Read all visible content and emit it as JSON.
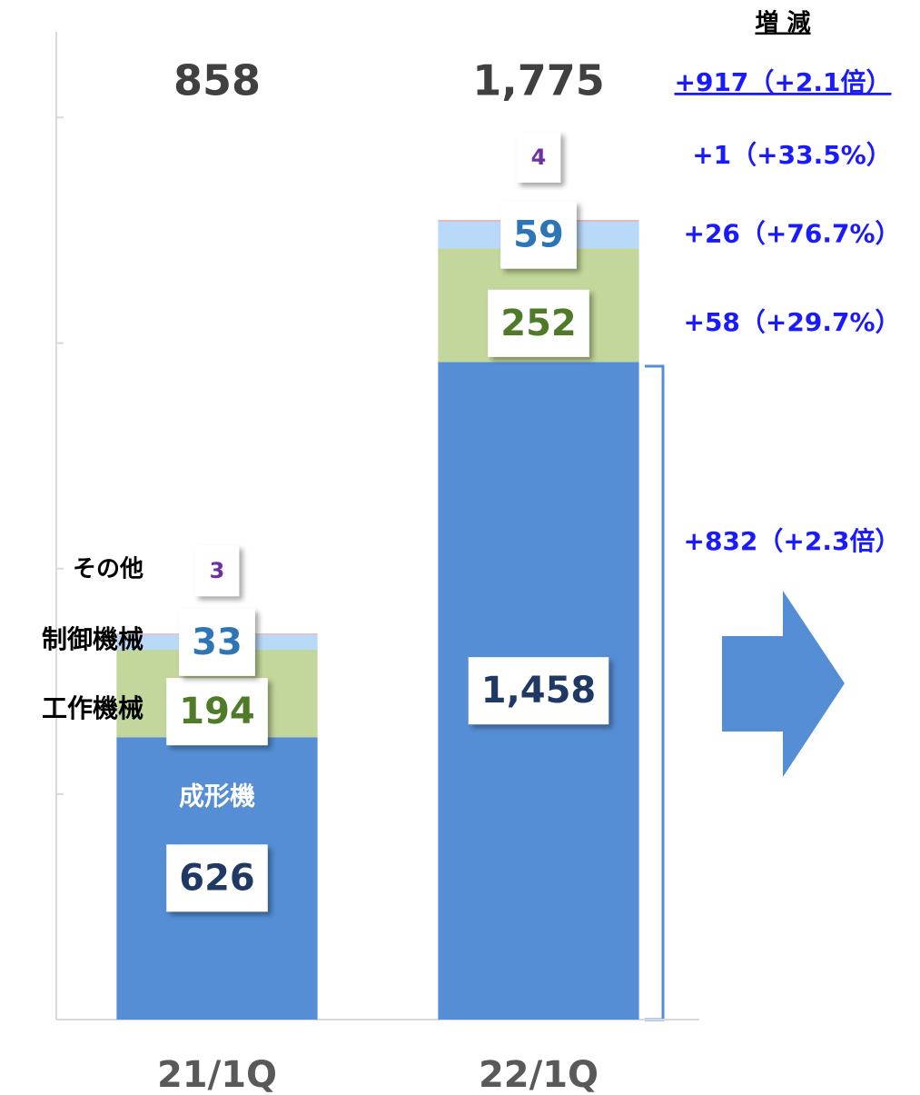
{
  "chart_data": {
    "type": "stacked_bar",
    "categories": [
      "21/1Q",
      "22/1Q"
    ],
    "series": [
      {
        "name": "成形機",
        "color": "#558ed5",
        "values": [
          626,
          1458
        ],
        "value_labels": [
          "626",
          "1,458"
        ],
        "change": "+832（+2.3倍）"
      },
      {
        "name": "工作機械",
        "color": "#c3d69b",
        "values": [
          194,
          252
        ],
        "change": "+58（+29.7%）"
      },
      {
        "name": "制御機械",
        "color": "#b9d9f9",
        "values": [
          33,
          59
        ],
        "change": "+26（+76.7%）"
      },
      {
        "name": "その他",
        "color": "#e6b9b8",
        "values": [
          3,
          4
        ],
        "change": "+1（+33.5%）"
      }
    ],
    "totals": [
      858,
      1775
    ],
    "total_labels": [
      "858",
      "1,775"
    ],
    "change_header": "増 減",
    "total_change": "+917（+2.1倍）",
    "ylim": [
      0,
      2190
    ],
    "yticks": [
      0,
      500,
      1000,
      1500,
      2000
    ]
  }
}
